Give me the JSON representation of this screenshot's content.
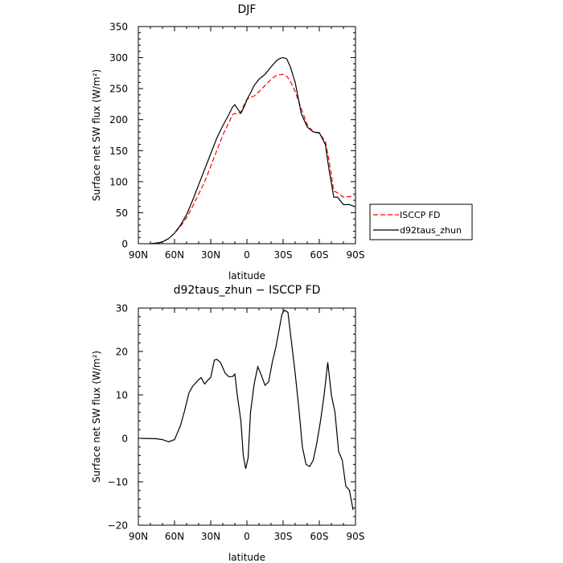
{
  "chart_data": [
    {
      "type": "line",
      "title": "DJF",
      "xlabel": "latitude",
      "ylabel": "Surface net SW flux (W/m²)",
      "xlim": [
        90,
        -90
      ],
      "ylim": [
        0,
        350
      ],
      "x_ticks": [
        90,
        60,
        30,
        0,
        -30,
        -60,
        -90
      ],
      "x_tick_labels": [
        "90N",
        "60N",
        "30N",
        "0",
        "30S",
        "60S",
        "90S"
      ],
      "y_ticks": [
        0,
        50,
        100,
        150,
        200,
        250,
        300,
        350
      ],
      "y_tick_labels": [
        "0",
        "50",
        "100",
        "150",
        "200",
        "250",
        "300",
        "350"
      ],
      "grid": false,
      "legend_position": "right",
      "series": [
        {
          "name": "ISCCP FD",
          "color": "#ff0000",
          "dash": "dashed",
          "x": [
            80,
            75,
            72,
            70,
            65,
            60,
            55,
            50,
            45,
            40,
            35,
            30,
            25,
            20,
            15,
            12,
            10,
            8,
            5,
            2,
            0,
            -3,
            -6,
            -10,
            -15,
            -20,
            -25,
            -30,
            -33,
            -36,
            -40,
            -45,
            -50,
            -55,
            -60,
            -65,
            -68,
            -72,
            -75,
            -80,
            -85,
            -89
          ],
          "y": [
            0,
            1,
            2,
            3,
            8,
            17,
            28,
            42,
            60,
            80,
            100,
            125,
            150,
            175,
            195,
            208,
            210,
            209,
            212,
            225,
            233,
            236,
            238,
            245,
            255,
            265,
            272,
            273,
            270,
            262,
            245,
            218,
            192,
            180,
            178,
            165,
            135,
            85,
            82,
            75,
            76,
            77
          ]
        },
        {
          "name": "d92taus_zhun",
          "color": "#000000",
          "dash": "solid",
          "x": [
            80,
            75,
            72,
            70,
            65,
            60,
            55,
            50,
            45,
            40,
            35,
            30,
            25,
            20,
            15,
            12,
            10,
            8,
            5,
            2,
            0,
            -3,
            -6,
            -10,
            -15,
            -20,
            -25,
            -28,
            -30,
            -33,
            -36,
            -40,
            -45,
            -50,
            -55,
            -60,
            -65,
            -68,
            -72,
            -75,
            -80,
            -85,
            -89
          ],
          "y": [
            0,
            1,
            2,
            3,
            8,
            17,
            30,
            47,
            70,
            95,
            120,
            145,
            170,
            190,
            208,
            220,
            224,
            218,
            210,
            222,
            232,
            243,
            255,
            265,
            273,
            285,
            296,
            299,
            300,
            298,
            285,
            260,
            210,
            188,
            180,
            179,
            160,
            120,
            75,
            75,
            63,
            63,
            60
          ]
        }
      ]
    },
    {
      "type": "line",
      "title": "d92taus_zhun − ISCCP FD",
      "xlabel": "latitude",
      "ylabel": "Surface net SW flux (W/m²)",
      "xlim": [
        90,
        -90
      ],
      "ylim": [
        -20,
        30
      ],
      "x_ticks": [
        90,
        60,
        30,
        0,
        -30,
        -60,
        -90
      ],
      "x_tick_labels": [
        "90N",
        "60N",
        "30N",
        "0",
        "30S",
        "60S",
        "90S"
      ],
      "y_ticks": [
        -20,
        -10,
        0,
        10,
        20,
        30
      ],
      "y_tick_labels": [
        "−20",
        "−10",
        "0",
        "10",
        "20",
        "30"
      ],
      "grid": false,
      "series": [
        {
          "color": "#000000",
          "dash": "solid",
          "x": [
            88,
            75,
            70,
            65,
            60,
            55,
            52,
            48,
            45,
            40,
            38,
            35,
            32,
            30,
            27,
            25,
            22,
            18,
            15,
            12,
            10,
            8,
            5,
            3,
            1,
            -1,
            -3,
            -6,
            -9,
            -12,
            -15,
            -18,
            -21,
            -24,
            -27,
            -29,
            -31,
            -34,
            -37,
            -40,
            -43,
            -46,
            -49,
            -52,
            -55,
            -58,
            -61,
            -64,
            -67,
            -70,
            -73,
            -76,
            -79,
            -82,
            -85,
            -88
          ],
          "y": [
            0,
            -0.1,
            -0.3,
            -0.8,
            -0.3,
            3,
            6,
            10.5,
            12,
            13.5,
            14,
            12.5,
            13.5,
            14,
            18,
            18.2,
            17.5,
            15,
            14.2,
            14.2,
            14.8,
            10,
            4,
            -4,
            -7,
            -4.5,
            6,
            12.5,
            16.5,
            14.5,
            12.2,
            13,
            17.5,
            21,
            25.5,
            28.5,
            29.5,
            29,
            22,
            15,
            7,
            -2,
            -6,
            -6.5,
            -5,
            -1,
            4,
            10,
            17.5,
            10,
            6,
            -3,
            -5,
            -11,
            -12,
            -16.5
          ]
        }
      ]
    }
  ]
}
